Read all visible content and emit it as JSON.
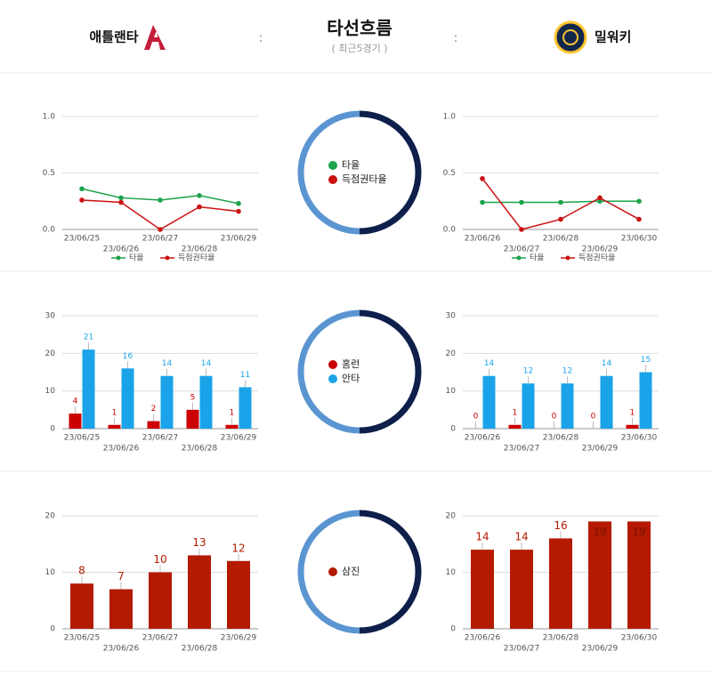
{
  "header": {
    "home": "애틀랜타",
    "title": "타선흐름",
    "subtitle": "( 최근5경기 )",
    "away": "밀워키",
    "separator": ":"
  },
  "chart_data": [
    {
      "type": "line",
      "categories": [
        "23/06/25",
        "23/06/26",
        "23/06/27",
        "23/06/28",
        "23/06/29"
      ],
      "series": [
        {
          "name": "타율",
          "color": "#1aa34a",
          "values": [
            0.36,
            0.28,
            0.26,
            0.3,
            0.23
          ]
        },
        {
          "name": "득점권타율",
          "color": "#cc1111",
          "values": [
            0.26,
            0.24,
            0,
            0.2,
            0.16
          ]
        }
      ],
      "ylim": [
        0,
        1
      ],
      "yticks": [
        {
          "value": 0,
          "label": "0.0"
        },
        0.5,
        {
          "value": 1,
          "label": "1.0"
        }
      ],
      "grid": true,
      "legend": "bottom"
    },
    {
      "type": "line",
      "categories": [
        "23/06/26",
        "23/06/27",
        "23/06/28",
        "23/06/29",
        "23/06/30"
      ],
      "series": [
        {
          "name": "타율",
          "color": "#1aa34a",
          "values": [
            0.24,
            0.24,
            0.24,
            0.25,
            0.25
          ]
        },
        {
          "name": "득점권타율",
          "color": "#cc1111",
          "values": [
            0.45,
            0,
            0.09,
            0.28,
            0.09
          ]
        }
      ],
      "ylim": [
        0,
        1
      ],
      "yticks": [
        {
          "value": 0,
          "label": "0.0"
        },
        0.5,
        {
          "value": 1,
          "label": "1.0"
        }
      ],
      "grid": true,
      "legend": "bottom"
    },
    {
      "type": "bar",
      "categories": [
        "23/06/25",
        "23/06/26",
        "23/06/27",
        "23/06/28",
        "23/06/29"
      ],
      "series": [
        {
          "name": "홈런",
          "color": "#cc0000",
          "values": [
            4,
            1,
            2,
            5,
            1
          ]
        },
        {
          "name": "안타",
          "color": "#1aa3e8",
          "values": [
            21,
            16,
            14,
            14,
            11
          ]
        }
      ],
      "ylim": [
        0,
        30
      ],
      "yticks": [
        0,
        10,
        20,
        30
      ],
      "grid": true
    },
    {
      "type": "bar",
      "categories": [
        "23/06/26",
        "23/06/27",
        "23/06/28",
        "23/06/29",
        "23/06/30"
      ],
      "series": [
        {
          "name": "홈런",
          "color": "#cc0000",
          "values": [
            0,
            1,
            0,
            0,
            1
          ]
        },
        {
          "name": "안타",
          "color": "#1aa3e8",
          "values": [
            14,
            12,
            12,
            14,
            15
          ]
        }
      ],
      "ylim": [
        0,
        30
      ],
      "yticks": [
        0,
        10,
        20,
        30
      ],
      "grid": true
    },
    {
      "type": "bar",
      "categories": [
        "23/06/25",
        "23/06/26",
        "23/06/27",
        "23/06/28",
        "23/06/29"
      ],
      "series": [
        {
          "name": "삼진",
          "color": "#b31a00",
          "values": [
            8,
            7,
            10,
            13,
            12
          ]
        }
      ],
      "ylim": [
        0,
        20
      ],
      "yticks": [
        0,
        10,
        20
      ],
      "grid": true
    },
    {
      "type": "bar",
      "categories": [
        "23/06/26",
        "23/06/27",
        "23/06/28",
        "23/06/29",
        "23/06/30"
      ],
      "series": [
        {
          "name": "삼진",
          "color": "#b31a00",
          "values": [
            14,
            14,
            16,
            19,
            19
          ]
        }
      ],
      "ylim": [
        0,
        20
      ],
      "yticks": [
        0,
        10,
        20
      ],
      "grid": true
    }
  ]
}
